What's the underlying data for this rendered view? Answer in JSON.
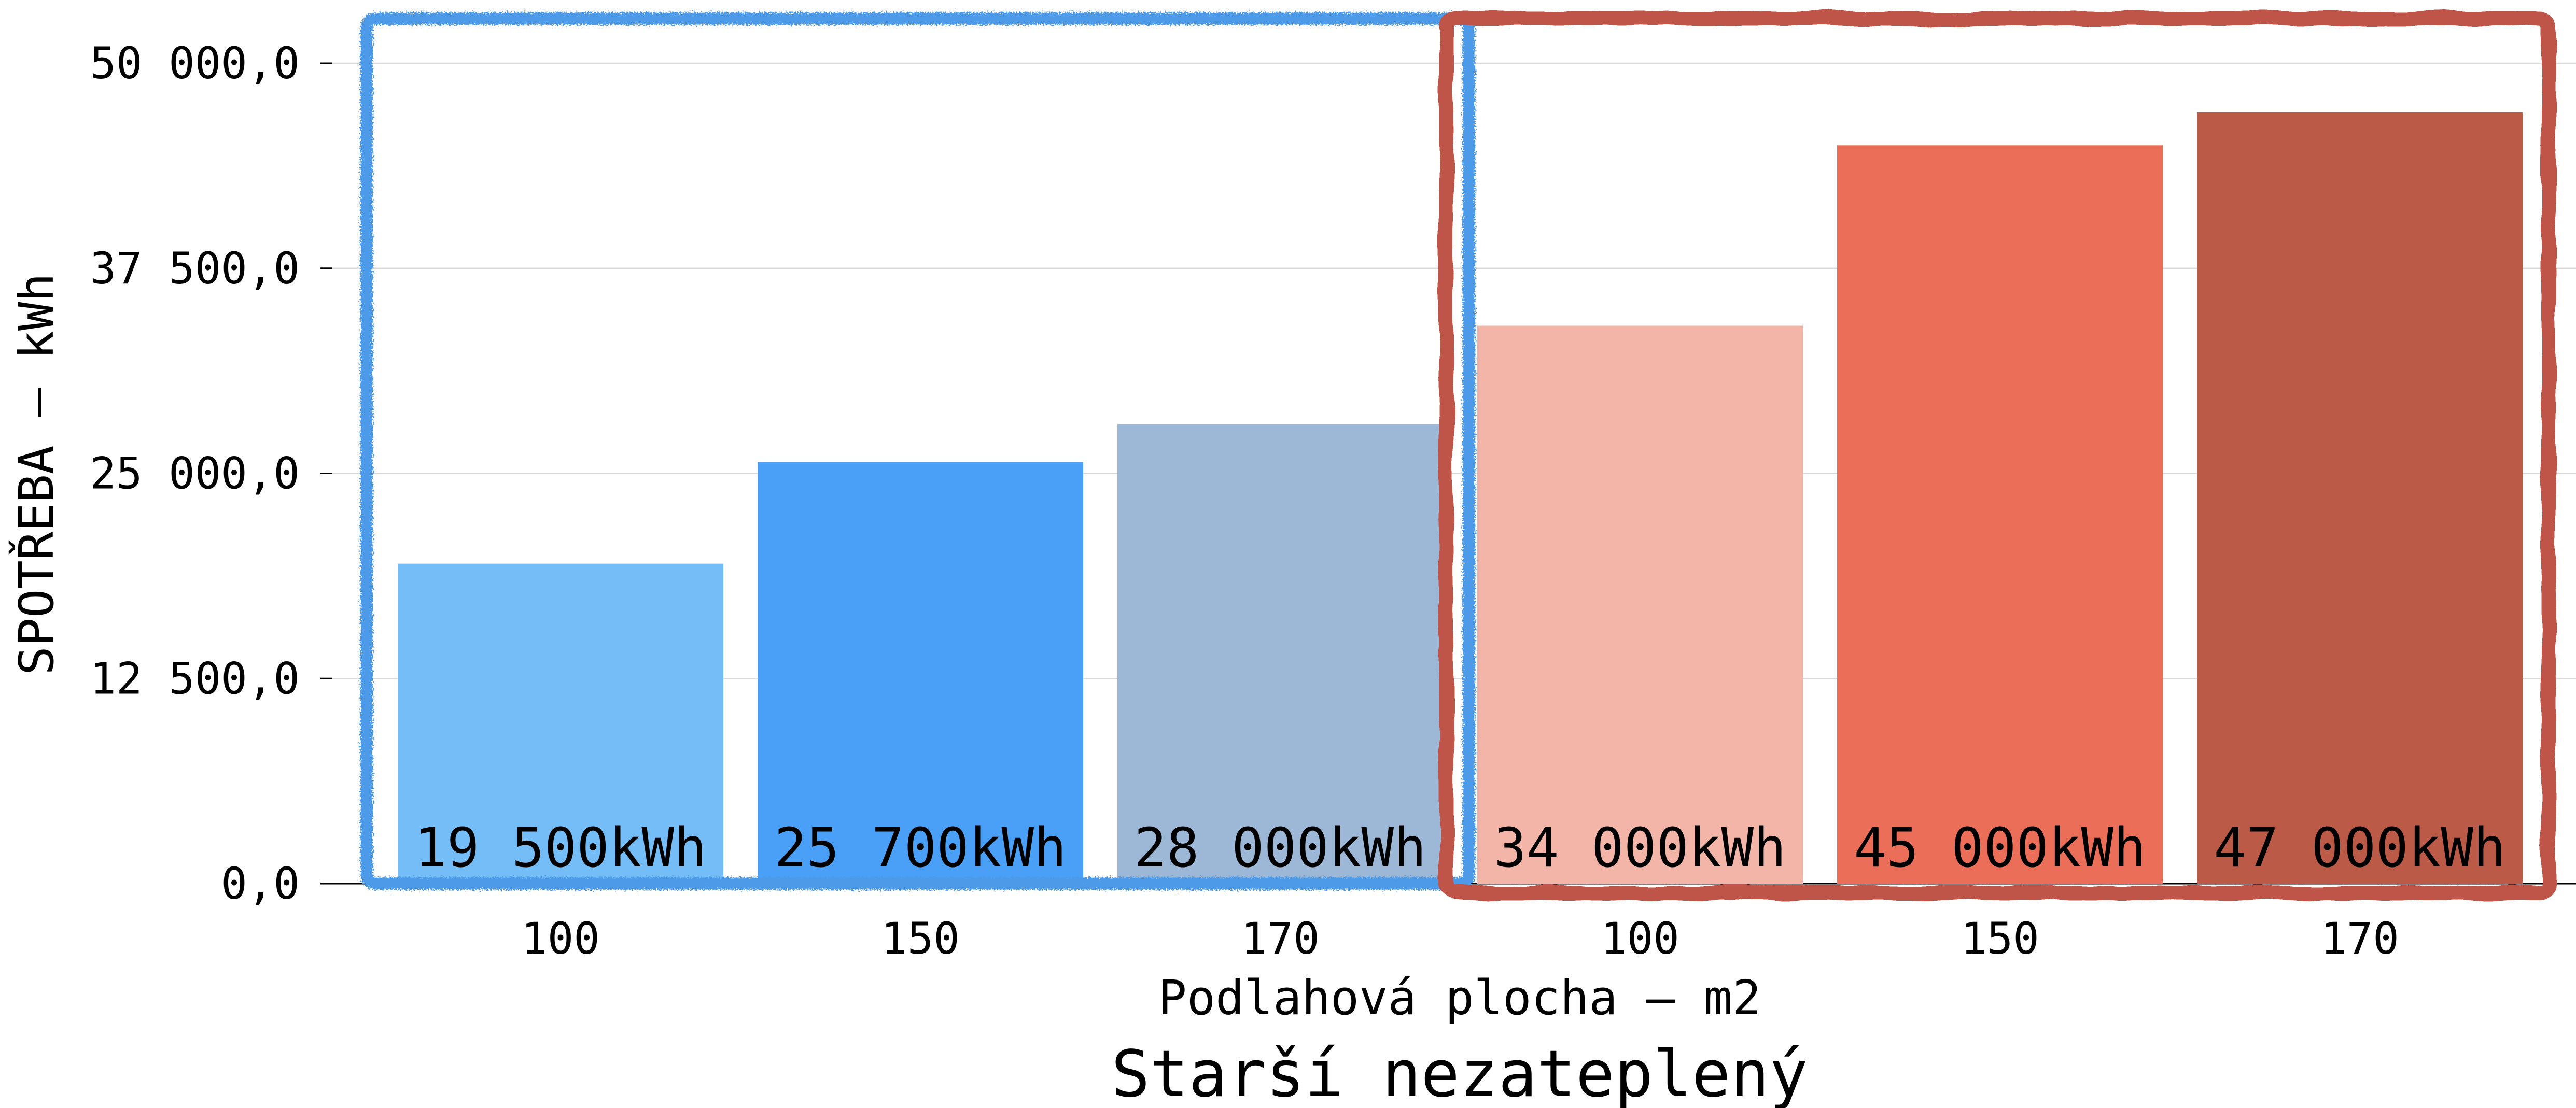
{
  "chart_data": {
    "type": "bar",
    "title": "",
    "group_title": "Starší nezateplený",
    "xlabel": "Podlahová plocha – m2",
    "ylabel": "SPOTŘEBA – kWh",
    "ylim": [
      0,
      50000
    ],
    "y_ticks": [
      0,
      12500,
      25000,
      37500,
      50000
    ],
    "y_tick_labels": [
      "0,0",
      "12 500,0",
      "25 000,0",
      "37 500,0",
      "50 000,0"
    ],
    "categories": [
      "100",
      "150",
      "170",
      "100",
      "150",
      "170"
    ],
    "values": [
      19500,
      25700,
      28000,
      34000,
      45000,
      47000
    ],
    "value_labels": [
      "19 500kWh",
      "25 700kWh",
      "28 000kWh",
      "34 000kWh",
      "45 000kWh",
      "47 000kWh"
    ],
    "bar_colors": [
      "#74bdf7",
      "#4aa0f7",
      "#9db8d6",
      "#f2b5a8",
      "#ea6e58",
      "#bc5a48"
    ],
    "grid": true,
    "groups": [
      {
        "bars": [
          0,
          1,
          2
        ],
        "outline_color": "#4e9be8"
      },
      {
        "bars": [
          3,
          4,
          5
        ],
        "outline_color": "#bf5448"
      }
    ]
  }
}
